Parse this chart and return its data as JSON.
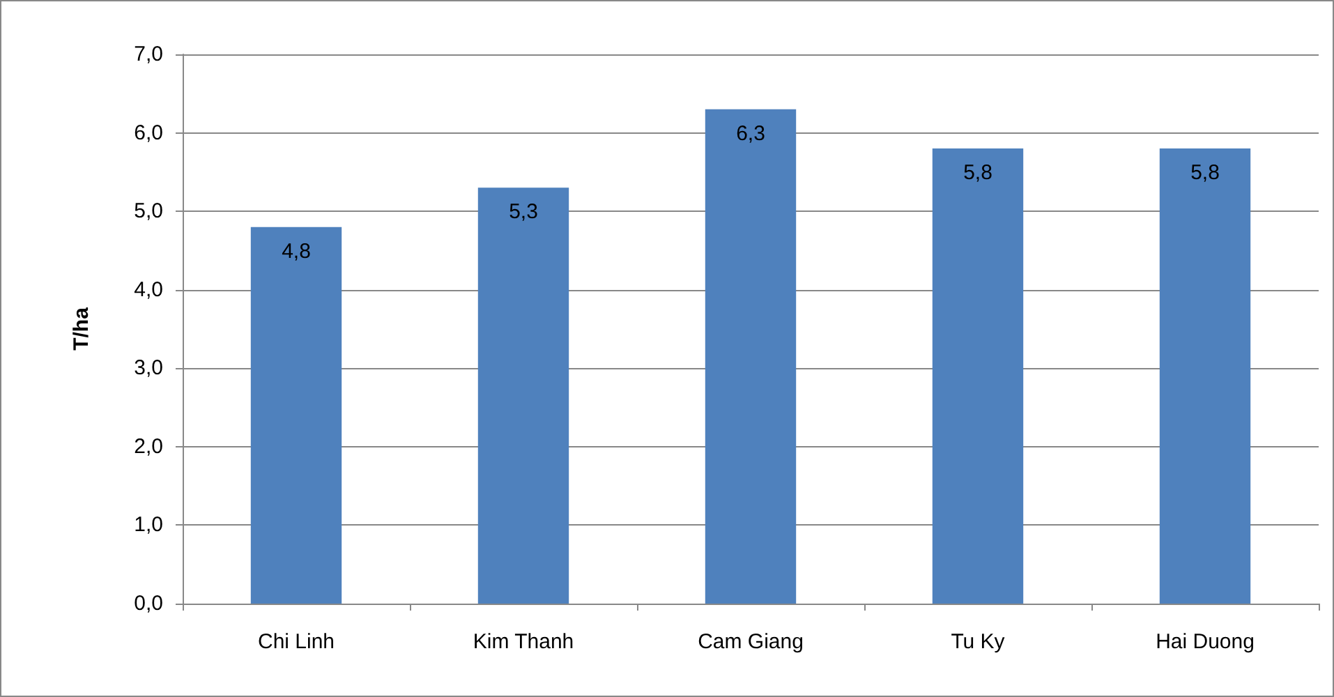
{
  "chart_data": {
    "type": "bar",
    "ylabel": "T/ha",
    "categories": [
      "Chi Linh",
      "Kim Thanh",
      "Cam Giang",
      "Tu Ky",
      "Hai Duong"
    ],
    "values": [
      4.8,
      5.3,
      6.3,
      5.8,
      5.8
    ],
    "color": "#4f81bd",
    "value_labels": [
      "4,8",
      "5,3",
      "6,3",
      "5,8",
      "5,8"
    ],
    "ylim": [
      0,
      7
    ],
    "yticks": [
      {
        "value": 0,
        "label": "0,0"
      },
      {
        "value": 1,
        "label": "1,0"
      },
      {
        "value": 2,
        "label": "2,0"
      },
      {
        "value": 3,
        "label": "3,0"
      },
      {
        "value": 4,
        "label": "4,0"
      },
      {
        "value": 5,
        "label": "5,0"
      },
      {
        "value": 6,
        "label": "6,0"
      },
      {
        "value": 7,
        "label": "7,0"
      }
    ],
    "grid": "y"
  }
}
